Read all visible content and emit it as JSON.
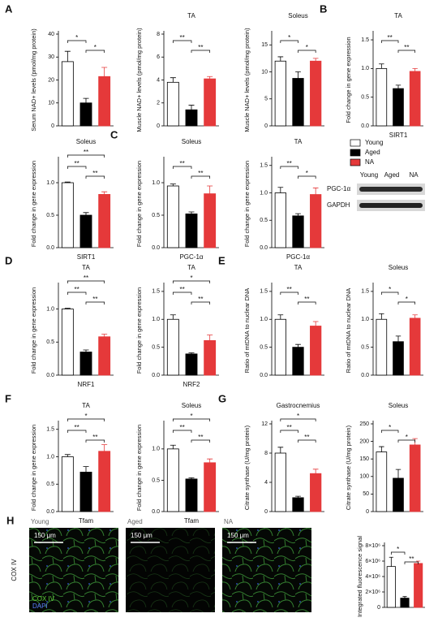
{
  "chart_data": [
    {
      "type": "bar",
      "panel": "A",
      "ylabel": "Serum NAD+ levels (pmol/mg protein)",
      "values": [
        28,
        10,
        21.5
      ],
      "errors": [
        4.5,
        2,
        4
      ],
      "ylim": [
        0,
        40
      ],
      "yticks": [
        0,
        10,
        20,
        30,
        40
      ],
      "significance": [
        "*",
        "*"
      ]
    },
    {
      "type": "bar",
      "title": "TA",
      "ylabel": "Muscle NAD+ levels (pmol/mg protein)",
      "values": [
        3.8,
        1.4,
        4.1
      ],
      "errors": [
        0.4,
        0.4,
        0.2
      ],
      "ylim": [
        0,
        8
      ],
      "yticks": [
        0,
        2,
        4,
        6,
        8
      ],
      "significance": [
        "**",
        "**"
      ]
    },
    {
      "type": "bar",
      "title": "Soleus",
      "ylabel": "Muscle NAD+ levels (pmol/mg protein)",
      "values": [
        12,
        8.8,
        12
      ],
      "errors": [
        0.8,
        1.2,
        0.5
      ],
      "ylim": [
        0,
        17
      ],
      "yticks": [
        0,
        5,
        10,
        15
      ],
      "significance": [
        "*",
        "*"
      ]
    },
    {
      "type": "bar",
      "panel": "B",
      "title": "TA",
      "xlabel": "SIRT1",
      "ylabel": "Fold change in gene expression",
      "values": [
        1.0,
        0.65,
        0.95
      ],
      "errors": [
        0.08,
        0.06,
        0.05
      ],
      "ylim": [
        0,
        1.6
      ],
      "yticks": [
        {
          "value": 0,
          "label": "0.0"
        },
        0.5,
        {
          "value": 1,
          "label": "1.0"
        },
        1.5
      ],
      "significance": [
        "**",
        "**"
      ]
    },
    {
      "type": "bar",
      "title": "Soleus",
      "xlabel": "SIRT1",
      "ylabel": "Fold change in gene expression",
      "values": [
        1.0,
        0.5,
        0.82
      ],
      "errors": [
        0.01,
        0.04,
        0.04
      ],
      "ylim": [
        0,
        1.35
      ],
      "yticks": [
        {
          "value": 0,
          "label": "0.0"
        },
        0.5,
        {
          "value": 1,
          "label": "1.0"
        }
      ],
      "significance": [
        "**",
        "**",
        "**"
      ]
    },
    {
      "type": "bar",
      "panel": "C",
      "title": "Soleus",
      "xlabel": "PGC-1α",
      "ylabel": "Fold change in gene expression",
      "values": [
        0.95,
        0.52,
        0.83
      ],
      "errors": [
        0.03,
        0.03,
        0.12
      ],
      "ylim": [
        0,
        1.35
      ],
      "yticks": [
        {
          "value": 0,
          "label": "0.0"
        },
        0.5,
        {
          "value": 1,
          "label": "1.0"
        }
      ],
      "significance": [
        "**",
        "**"
      ]
    },
    {
      "type": "bar",
      "title": "TA",
      "xlabel": "PGC-1α",
      "ylabel": "Fold change in gene expression",
      "values": [
        1.0,
        0.58,
        0.97
      ],
      "errors": [
        0.1,
        0.04,
        0.12
      ],
      "ylim": [
        0,
        1.6
      ],
      "yticks": [
        {
          "value": 0,
          "label": "0.0"
        },
        0.5,
        {
          "value": 1,
          "label": "1.0"
        },
        1.5
      ],
      "significance": [
        "**",
        "*"
      ]
    },
    {
      "type": "bar",
      "panel": "D",
      "title": "TA",
      "xlabel": "NRF1",
      "ylabel": "Fold change in gene expression",
      "values": [
        1.0,
        0.35,
        0.58
      ],
      "errors": [
        0.01,
        0.03,
        0.04
      ],
      "ylim": [
        0,
        1.35
      ],
      "yticks": [
        {
          "value": 0,
          "label": "0.0"
        },
        0.5,
        {
          "value": 1,
          "label": "1.0"
        }
      ],
      "significance": [
        "**",
        "**",
        "**"
      ]
    },
    {
      "type": "bar",
      "title": "TA",
      "xlabel": "NRF2",
      "ylabel": "Fold change in gene expression",
      "values": [
        1.0,
        0.38,
        0.62
      ],
      "errors": [
        0.08,
        0.02,
        0.1
      ],
      "ylim": [
        0,
        1.6
      ],
      "yticks": [
        {
          "value": 0,
          "label": "0.0"
        },
        0.5,
        {
          "value": 1,
          "label": "1.0"
        },
        1.5
      ],
      "significance": [
        "**",
        "**",
        "*"
      ]
    },
    {
      "type": "bar",
      "panel": "E",
      "title": "TA",
      "ylabel": "Ratio of mtDNA to nuclear DNA",
      "values": [
        1.0,
        0.5,
        0.88
      ],
      "errors": [
        0.08,
        0.05,
        0.08
      ],
      "ylim": [
        0,
        1.6
      ],
      "yticks": [
        {
          "value": 0,
          "label": "0.0"
        },
        0.5,
        {
          "value": 1,
          "label": "1.0"
        },
        1.5
      ],
      "significance": [
        "**",
        "**"
      ]
    },
    {
      "type": "bar",
      "title": "Soleus",
      "ylabel": "Ratio of mtDNA to nuclear DNA",
      "values": [
        1.0,
        0.6,
        1.02
      ],
      "errors": [
        0.1,
        0.1,
        0.06
      ],
      "ylim": [
        0,
        1.6
      ],
      "yticks": [
        {
          "value": 0,
          "label": "0.0"
        },
        0.5,
        {
          "value": 1,
          "label": "1.0"
        },
        1.5
      ],
      "significance": [
        "*",
        "*"
      ]
    },
    {
      "type": "bar",
      "panel": "F",
      "title": "TA",
      "xlabel": "Tfam",
      "ylabel": "Fold change in gene expression",
      "values": [
        1.0,
        0.72,
        1.1
      ],
      "errors": [
        0.04,
        0.1,
        0.12
      ],
      "ylim": [
        0,
        1.6
      ],
      "yticks": [
        {
          "value": 0,
          "label": "0.0"
        },
        0.5,
        {
          "value": 1,
          "label": "1.0"
        },
        1.5
      ],
      "significance": [
        "**",
        "**",
        "*"
      ]
    },
    {
      "type": "bar",
      "title": "Soleus",
      "xlabel": "Tfam",
      "ylabel": "Fold change in gene expression",
      "values": [
        1.0,
        0.52,
        0.78
      ],
      "errors": [
        0.06,
        0.02,
        0.06
      ],
      "ylim": [
        0,
        1.4
      ],
      "yticks": [
        {
          "value": 0,
          "label": "0.0"
        },
        0.5,
        {
          "value": 1,
          "label": "1.0"
        }
      ],
      "significance": [
        "**",
        "**",
        "*"
      ]
    },
    {
      "type": "bar",
      "panel": "G",
      "title": "Gastrocnemius",
      "ylabel": "Citrate synthase (U/mg protein)",
      "values": [
        8,
        1.9,
        5.2
      ],
      "errors": [
        0.8,
        0.2,
        0.6
      ],
      "ylim": [
        0,
        12
      ],
      "yticks": [
        0,
        4,
        8,
        12
      ],
      "significance": [
        "**",
        "**",
        "*"
      ]
    },
    {
      "type": "bar",
      "title": "Soleus",
      "ylabel": "Citrate synthase (U/mg protein)",
      "values": [
        170,
        95,
        190
      ],
      "errors": [
        15,
        25,
        18
      ],
      "ylim": [
        0,
        250
      ],
      "yticks": [
        0,
        50,
        100,
        150,
        200,
        250
      ],
      "significance": [
        "*",
        "*"
      ]
    },
    {
      "type": "bar",
      "ylabel": "Integrated fluorescence signal",
      "values": [
        5300000,
        1200000,
        5700000
      ],
      "errors": [
        1200000,
        200000,
        300000
      ],
      "ylim": [
        0,
        8000000
      ],
      "yticks": [
        0,
        {
          "value": 2000000,
          "label": "2×10⁶"
        },
        {
          "value": 4000000,
          "label": "4×10⁶"
        },
        {
          "value": 6000000,
          "label": "6×10⁶"
        },
        {
          "value": 8000000,
          "label": "8×10⁶"
        }
      ],
      "significance": [
        "*",
        "**"
      ]
    }
  ],
  "legend": [
    {
      "name": "Young",
      "color": "#ffffff"
    },
    {
      "name": "Aged",
      "color": "#000000"
    },
    {
      "name": "NA",
      "color": "#e5393a"
    }
  ],
  "blot": {
    "lanes": [
      "Young",
      "Aged",
      "NA"
    ],
    "rows": [
      "PGC-1α",
      "GAPDH"
    ]
  },
  "imaging": {
    "panel": "H",
    "row_label": "COX IV",
    "images": [
      {
        "label": "Young",
        "scale": "150 μm"
      },
      {
        "label": "Aged",
        "scale": "150 μm"
      },
      {
        "label": "NA",
        "scale": "150 μm"
      }
    ],
    "channels": [
      "COX IV",
      "DAPI"
    ]
  }
}
